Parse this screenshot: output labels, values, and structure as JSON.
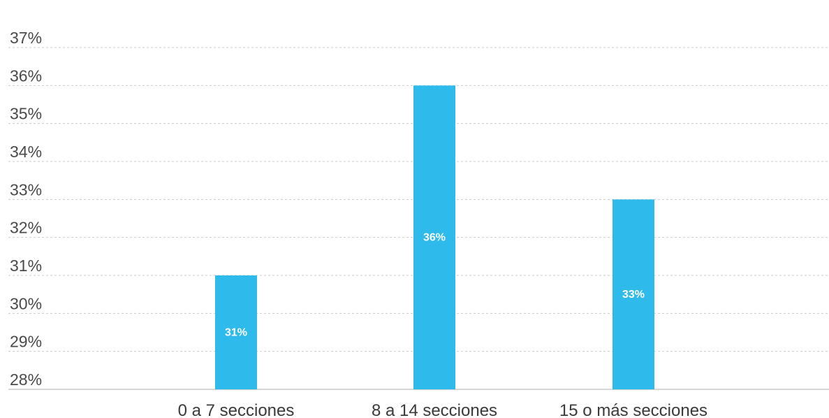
{
  "chart_data": {
    "type": "bar",
    "title": "",
    "xlabel": "",
    "ylabel": "",
    "categories": [
      "0 a 7 secciones",
      "8 a 14 secciones",
      "15 o más secciones"
    ],
    "values": [
      31,
      36,
      33
    ],
    "data_labels": [
      "31%",
      "36%",
      "33%"
    ],
    "ylim": [
      28,
      37
    ],
    "yticks": [
      28,
      29,
      30,
      31,
      32,
      33,
      34,
      35,
      36,
      37
    ],
    "ytick_labels": [
      "28%",
      "29%",
      "30%",
      "31%",
      "32%",
      "33%",
      "34%",
      "35%",
      "36%",
      "37%"
    ],
    "grid": true,
    "legend": "none",
    "colors": {
      "bar": "#2ebbeb",
      "grid": "#c9c9c9",
      "data_label": "#ffffff"
    }
  }
}
